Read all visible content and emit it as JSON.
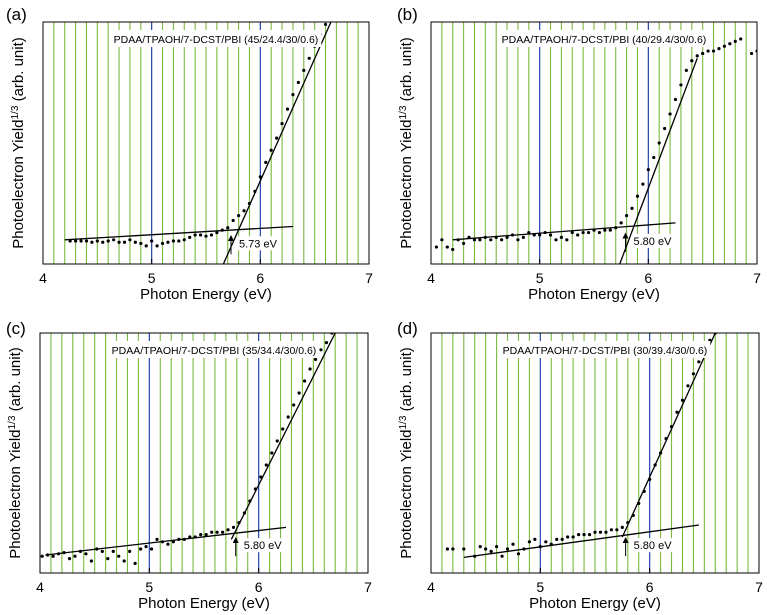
{
  "chart_data": [
    {
      "type": "scatter",
      "panel_label": "(a)",
      "title": "PDAA/TPAOH/7-DCST/PBI (45/24.4/30/0.6)",
      "xlabel": "Photon Energy (eV)",
      "ylabel_main": "Photoelectron Yield",
      "ylabel_sup": "1/3",
      "ylabel_unit": "(arb. unit)",
      "xlim": [
        4,
        7
      ],
      "ylim": [
        0,
        1
      ],
      "xticks": [
        "4",
        "5",
        "6",
        "7"
      ],
      "threshold_label": "5.73 eV",
      "threshold": 5.73,
      "baseline": [
        [
          4.2,
          0.1
        ],
        [
          6.3,
          0.155
        ]
      ],
      "riseline": [
        [
          5.65,
          -0.01
        ],
        [
          6.65,
          1.0
        ]
      ],
      "arrow": [
        [
          5.73,
          0.04
        ],
        [
          5.73,
          0.12
        ]
      ],
      "points": [
        [
          4.25,
          0.095
        ],
        [
          4.3,
          0.095
        ],
        [
          4.35,
          0.095
        ],
        [
          4.4,
          0.095
        ],
        [
          4.45,
          0.09
        ],
        [
          4.5,
          0.095
        ],
        [
          4.55,
          0.09
        ],
        [
          4.6,
          0.095
        ],
        [
          4.65,
          0.1
        ],
        [
          4.7,
          0.09
        ],
        [
          4.75,
          0.09
        ],
        [
          4.8,
          0.1
        ],
        [
          4.85,
          0.09
        ],
        [
          4.9,
          0.085
        ],
        [
          4.95,
          0.075
        ],
        [
          5.0,
          0.095
        ],
        [
          5.05,
          0.075
        ],
        [
          5.1,
          0.085
        ],
        [
          5.15,
          0.09
        ],
        [
          5.2,
          0.095
        ],
        [
          5.25,
          0.095
        ],
        [
          5.3,
          0.1
        ],
        [
          5.35,
          0.11
        ],
        [
          5.4,
          0.12
        ],
        [
          5.45,
          0.12
        ],
        [
          5.5,
          0.115
        ],
        [
          5.55,
          0.12
        ],
        [
          5.6,
          0.13
        ],
        [
          5.65,
          0.14
        ],
        [
          5.7,
          0.15
        ],
        [
          5.75,
          0.18
        ],
        [
          5.8,
          0.2
        ],
        [
          5.85,
          0.22
        ],
        [
          5.9,
          0.25
        ],
        [
          5.95,
          0.3
        ],
        [
          6.0,
          0.36
        ],
        [
          6.05,
          0.42
        ],
        [
          6.1,
          0.47
        ],
        [
          6.15,
          0.52
        ],
        [
          6.2,
          0.58
        ],
        [
          6.25,
          0.64
        ],
        [
          6.3,
          0.7
        ],
        [
          6.35,
          0.75
        ],
        [
          6.4,
          0.8
        ],
        [
          6.45,
          0.85
        ],
        [
          6.5,
          0.9
        ],
        [
          6.55,
          0.95
        ],
        [
          6.6,
          0.99
        ],
        [
          6.63,
          1.01
        ]
      ]
    },
    {
      "type": "scatter",
      "panel_label": "(b)",
      "title": "PDAA/TPAOH/7-DCST/PBI (40/29.4/30/0.6)",
      "xlabel": "Photon Energy (eV)",
      "ylabel_main": "Photoelectron Yield",
      "ylabel_sup": "1/3",
      "ylabel_unit": "(arb. unit)",
      "xlim": [
        4,
        7
      ],
      "ylim": [
        0,
        1
      ],
      "xticks": [
        "4",
        "5",
        "6",
        "7"
      ],
      "threshold_label": "5.80 eV",
      "threshold": 5.8,
      "baseline": [
        [
          4.2,
          0.1
        ],
        [
          6.25,
          0.17
        ]
      ],
      "riseline": [
        [
          5.72,
          -0.02
        ],
        [
          6.45,
          0.85
        ]
      ],
      "arrow": [
        [
          5.79,
          0.05
        ],
        [
          5.79,
          0.13
        ]
      ],
      "points": [
        [
          4.05,
          0.07
        ],
        [
          4.1,
          0.1
        ],
        [
          4.15,
          0.07
        ],
        [
          4.2,
          0.06
        ],
        [
          4.25,
          0.1
        ],
        [
          4.3,
          0.085
        ],
        [
          4.35,
          0.11
        ],
        [
          4.4,
          0.1
        ],
        [
          4.45,
          0.1
        ],
        [
          4.5,
          0.11
        ],
        [
          4.55,
          0.1
        ],
        [
          4.6,
          0.11
        ],
        [
          4.65,
          0.1
        ],
        [
          4.7,
          0.11
        ],
        [
          4.75,
          0.12
        ],
        [
          4.8,
          0.1
        ],
        [
          4.85,
          0.11
        ],
        [
          4.9,
          0.13
        ],
        [
          4.95,
          0.12
        ],
        [
          5.0,
          0.12
        ],
        [
          5.05,
          0.13
        ],
        [
          5.1,
          0.12
        ],
        [
          5.15,
          0.1
        ],
        [
          5.2,
          0.11
        ],
        [
          5.25,
          0.1
        ],
        [
          5.3,
          0.13
        ],
        [
          5.35,
          0.12
        ],
        [
          5.4,
          0.13
        ],
        [
          5.45,
          0.13
        ],
        [
          5.5,
          0.14
        ],
        [
          5.55,
          0.13
        ],
        [
          5.6,
          0.14
        ],
        [
          5.65,
          0.14
        ],
        [
          5.7,
          0.15
        ],
        [
          5.75,
          0.17
        ],
        [
          5.8,
          0.2
        ],
        [
          5.85,
          0.23
        ],
        [
          5.9,
          0.28
        ],
        [
          5.95,
          0.33
        ],
        [
          6.0,
          0.39
        ],
        [
          6.05,
          0.44
        ],
        [
          6.1,
          0.5
        ],
        [
          6.15,
          0.56
        ],
        [
          6.2,
          0.62
        ],
        [
          6.25,
          0.68
        ],
        [
          6.3,
          0.74
        ],
        [
          6.35,
          0.8
        ],
        [
          6.4,
          0.84
        ],
        [
          6.45,
          0.86
        ],
        [
          6.5,
          0.87
        ],
        [
          6.55,
          0.88
        ],
        [
          6.6,
          0.88
        ],
        [
          6.65,
          0.89
        ],
        [
          6.7,
          0.9
        ],
        [
          6.75,
          0.91
        ],
        [
          6.8,
          0.92
        ],
        [
          6.85,
          0.93
        ],
        [
          6.95,
          0.87
        ],
        [
          7.0,
          0.88
        ]
      ]
    },
    {
      "type": "scatter",
      "panel_label": "(c)",
      "title": "PDAA/TPAOH/7-DCST/PBI (35/34.4/30/0.6)",
      "xlabel": "Photon Energy (eV)",
      "ylabel_main": "Photoelectron Yield",
      "ylabel_sup": "1/3",
      "ylabel_unit": "(arb. unit)",
      "xlim": [
        4,
        7
      ],
      "ylim": [
        0,
        1
      ],
      "xticks": [
        "4",
        "5",
        "6",
        "7"
      ],
      "threshold_label": "5.80 eV",
      "threshold": 5.8,
      "baseline": [
        [
          4.05,
          0.075
        ],
        [
          6.25,
          0.19
        ]
      ],
      "riseline": [
        [
          5.75,
          0.14
        ],
        [
          6.7,
          1.0
        ]
      ],
      "arrow": [
        [
          5.79,
          0.07
        ],
        [
          5.79,
          0.15
        ]
      ],
      "points": [
        [
          4.02,
          0.07
        ],
        [
          4.07,
          0.075
        ],
        [
          4.12,
          0.07
        ],
        [
          4.17,
          0.08
        ],
        [
          4.22,
          0.085
        ],
        [
          4.27,
          0.06
        ],
        [
          4.32,
          0.07
        ],
        [
          4.37,
          0.09
        ],
        [
          4.42,
          0.08
        ],
        [
          4.47,
          0.05
        ],
        [
          4.52,
          0.1
        ],
        [
          4.57,
          0.09
        ],
        [
          4.62,
          0.06
        ],
        [
          4.67,
          0.09
        ],
        [
          4.72,
          0.07
        ],
        [
          4.77,
          0.05
        ],
        [
          4.82,
          0.09
        ],
        [
          4.87,
          0.04
        ],
        [
          4.92,
          0.1
        ],
        [
          4.97,
          0.11
        ],
        [
          5.02,
          0.1
        ],
        [
          5.07,
          0.14
        ],
        [
          5.12,
          0.13
        ],
        [
          5.17,
          0.12
        ],
        [
          5.22,
          0.13
        ],
        [
          5.27,
          0.14
        ],
        [
          5.32,
          0.14
        ],
        [
          5.37,
          0.15
        ],
        [
          5.42,
          0.15
        ],
        [
          5.47,
          0.16
        ],
        [
          5.52,
          0.16
        ],
        [
          5.57,
          0.17
        ],
        [
          5.62,
          0.17
        ],
        [
          5.67,
          0.17
        ],
        [
          5.72,
          0.18
        ],
        [
          5.77,
          0.19
        ],
        [
          5.82,
          0.21
        ],
        [
          5.87,
          0.25
        ],
        [
          5.92,
          0.3
        ],
        [
          5.97,
          0.35
        ],
        [
          6.02,
          0.4
        ],
        [
          6.07,
          0.45
        ],
        [
          6.12,
          0.5
        ],
        [
          6.17,
          0.55
        ],
        [
          6.22,
          0.6
        ],
        [
          6.27,
          0.65
        ],
        [
          6.32,
          0.7
        ],
        [
          6.37,
          0.75
        ],
        [
          6.42,
          0.8
        ],
        [
          6.47,
          0.85
        ],
        [
          6.52,
          0.89
        ],
        [
          6.57,
          0.93
        ],
        [
          6.62,
          0.96
        ],
        [
          6.67,
          1.0
        ]
      ]
    },
    {
      "type": "scatter",
      "panel_label": "(d)",
      "title": "PDAA/TPAOH/7-DCST/PBI (30/39.4/30/0.6)",
      "xlabel": "Photon Energy (eV)",
      "ylabel_main": "Photoelectron Yield",
      "ylabel_sup": "1/3",
      "ylabel_unit": "(arb. unit)",
      "xlim": [
        4,
        7
      ],
      "ylim": [
        0,
        1
      ],
      "xticks": [
        "4",
        "5",
        "6",
        "7"
      ],
      "threshold_label": "5.80 eV",
      "threshold": 5.8,
      "baseline": [
        [
          4.3,
          0.065
        ],
        [
          6.45,
          0.2
        ]
      ],
      "riseline": [
        [
          5.75,
          0.15
        ],
        [
          6.6,
          1.0
        ]
      ],
      "arrow": [
        [
          5.78,
          0.07
        ],
        [
          5.78,
          0.15
        ]
      ],
      "points": [
        [
          4.15,
          0.1
        ],
        [
          4.2,
          0.1
        ],
        [
          4.3,
          0.1
        ],
        [
          4.4,
          0.07
        ],
        [
          4.45,
          0.11
        ],
        [
          4.5,
          0.1
        ],
        [
          4.55,
          0.09
        ],
        [
          4.6,
          0.11
        ],
        [
          4.65,
          0.07
        ],
        [
          4.7,
          0.1
        ],
        [
          4.75,
          0.12
        ],
        [
          4.8,
          0.08
        ],
        [
          4.85,
          0.1
        ],
        [
          4.9,
          0.13
        ],
        [
          4.95,
          0.14
        ],
        [
          5.0,
          0.11
        ],
        [
          5.05,
          0.13
        ],
        [
          5.1,
          0.12
        ],
        [
          5.15,
          0.14
        ],
        [
          5.2,
          0.14
        ],
        [
          5.25,
          0.15
        ],
        [
          5.3,
          0.15
        ],
        [
          5.35,
          0.16
        ],
        [
          5.4,
          0.16
        ],
        [
          5.45,
          0.16
        ],
        [
          5.5,
          0.17
        ],
        [
          5.55,
          0.17
        ],
        [
          5.6,
          0.17
        ],
        [
          5.65,
          0.18
        ],
        [
          5.7,
          0.18
        ],
        [
          5.75,
          0.19
        ],
        [
          5.8,
          0.21
        ],
        [
          5.85,
          0.24
        ],
        [
          5.9,
          0.29
        ],
        [
          5.95,
          0.34
        ],
        [
          6.0,
          0.39
        ],
        [
          6.05,
          0.45
        ],
        [
          6.1,
          0.5
        ],
        [
          6.15,
          0.56
        ],
        [
          6.2,
          0.61
        ],
        [
          6.25,
          0.67
        ],
        [
          6.3,
          0.72
        ],
        [
          6.35,
          0.78
        ],
        [
          6.4,
          0.83
        ],
        [
          6.45,
          0.88
        ],
        [
          6.5,
          0.92
        ],
        [
          6.55,
          0.97
        ],
        [
          6.6,
          1.0
        ],
        [
          6.65,
          1.01
        ]
      ]
    }
  ]
}
